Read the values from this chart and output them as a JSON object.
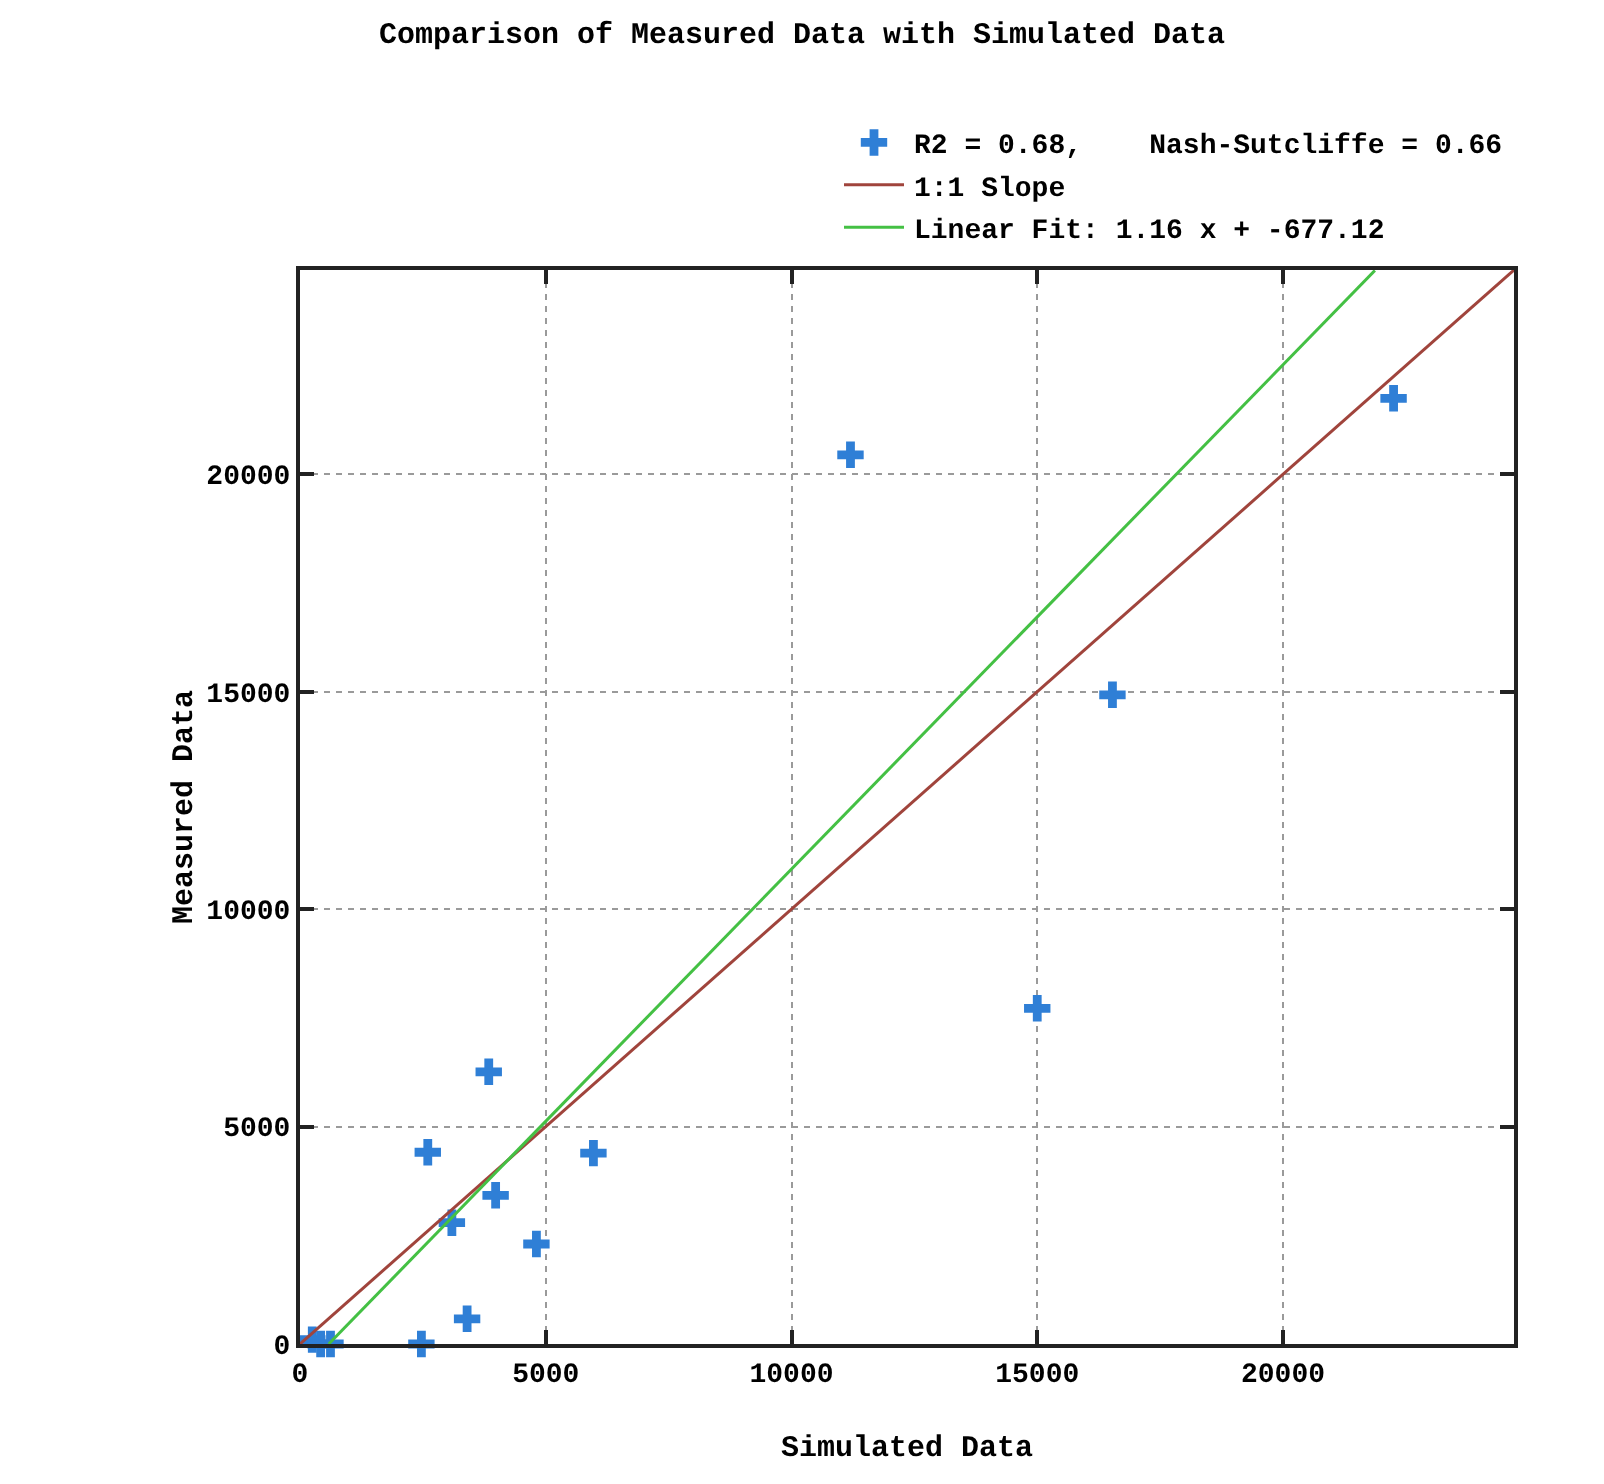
{
  "chart_data": {
    "type": "scatter",
    "title": "Comparison of Measured Data with Simulated Data",
    "xlabel": "Simulated Data",
    "ylabel": "Measured Data",
    "xlim": [
      0,
      24700
    ],
    "ylim": [
      0,
      24700
    ],
    "xticks": [
      0,
      5000,
      10000,
      15000,
      20000
    ],
    "yticks": [
      0,
      5000,
      10000,
      15000,
      20000
    ],
    "grid": true,
    "legend": "top",
    "marker": "cross",
    "series": [
      {
        "name": "R2 = 0.68,    Nash-Sutcliffe = 0.66",
        "color": "#2f7fd6",
        "x": [
          22250,
          11200,
          16530,
          15000,
          5970,
          3840,
          2600,
          3980,
          3090,
          4810,
          3400,
          2470,
          250,
          420,
          620
        ],
        "values": [
          21750,
          20450,
          14930,
          7720,
          4390,
          6260,
          4410,
          3420,
          2790,
          2300,
          580,
          0,
          100,
          0,
          0
        ]
      },
      {
        "name": "1:1 Slope",
        "type": "line",
        "color": "#a0443c",
        "marker": "none",
        "x": [
          0,
          24700
        ],
        "values": [
          0,
          24700
        ]
      },
      {
        "name": "Linear Fit: 1.16 x + -677.12",
        "type": "line",
        "color": "#44c044",
        "marker": "none",
        "x": [
          584,
          21870
        ],
        "values": [
          0,
          24690
        ]
      }
    ]
  }
}
